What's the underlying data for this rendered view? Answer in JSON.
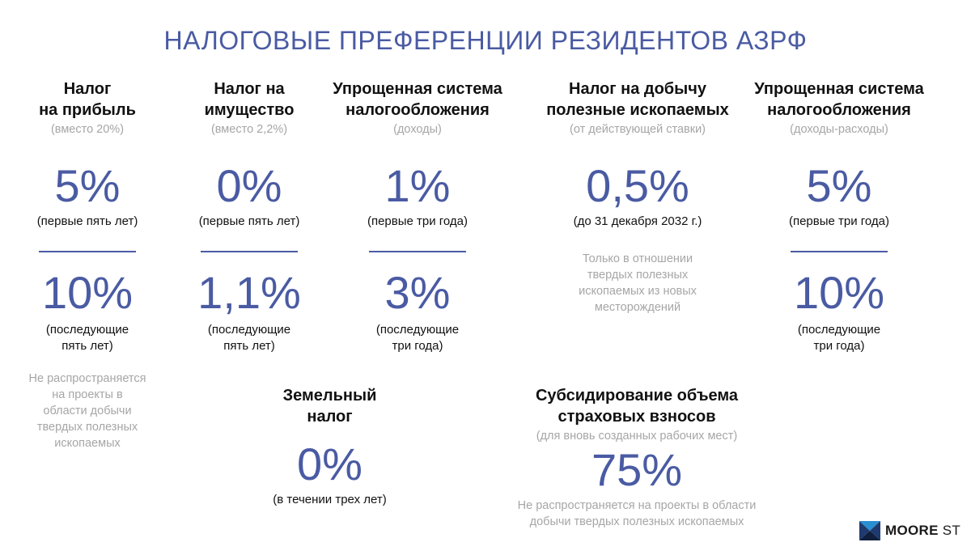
{
  "title": "НАЛОГОВЫЕ ПРЕФЕРЕНЦИИ РЕЗИДЕНТОВ АЗРФ",
  "profit_tax": {
    "heading_line1": "Налог",
    "heading_line2": "на прибыль",
    "note": "(вместо 20%)",
    "first_rate": "5%",
    "first_period": "(первые пять лет)",
    "second_rate": "10%",
    "second_period_line1": "(последующие",
    "second_period_line2": "пять лет)",
    "footnote_lines": [
      "Не распространяется",
      "на проекты в",
      "области добычи",
      "твердых полезных",
      "ископаемых"
    ]
  },
  "property_tax": {
    "heading_line1": "Налог на",
    "heading_line2": "имущество",
    "note": "(вместо 2,2%)",
    "first_rate": "0%",
    "first_period": "(первые пять лет)",
    "second_rate": "1,1%",
    "second_period_line1": "(последующие",
    "second_period_line2": "пять лет)"
  },
  "simplified_income": {
    "heading_line1": "Упрощенная система",
    "heading_line2": "налогообложения",
    "note": "(доходы)",
    "first_rate": "1%",
    "first_period": "(первые три года)",
    "second_rate": "3%",
    "second_period_line1": "(последующие",
    "second_period_line2": "три года)"
  },
  "mineral_tax": {
    "heading_line1": "Налог на добычу",
    "heading_line2": "полезные ископаемых",
    "note": "(от действующей ставки)",
    "rate": "0,5%",
    "period": "(до 31 декабря 2032 г.)",
    "footnote_lines": [
      "Только в отношении",
      "твердых полезных",
      "ископаемых из новых",
      "месторождений"
    ]
  },
  "simplified_income_expense": {
    "heading_line1": "Упрощенная система",
    "heading_line2": "налогообложения",
    "note": "(доходы-расходы)",
    "first_rate": "5%",
    "first_period": "(первые три года)",
    "second_rate": "10%",
    "second_period_line1": "(последующие",
    "second_period_line2": "три года)"
  },
  "land_tax": {
    "heading_line1": "Земельный",
    "heading_line2": "налог",
    "rate": "0%",
    "period": "(в течении трех лет)"
  },
  "insurance_subsidy": {
    "heading_line1": "Субсидирование объема",
    "heading_line2": "страховых взносов",
    "note": "(для вновь созданных рабочих мест)",
    "rate": "75%",
    "footnote_line1": "Не распространяется на проекты в области",
    "footnote_line2": "добычи твердых полезных ископаемых"
  },
  "logo": {
    "word1": "MOORE",
    "word2": "ST",
    "icon": "moore-logo-icon"
  },
  "colors": {
    "accent": "#4a5ba3",
    "gray": "#a6a6a6",
    "text": "#111111"
  }
}
